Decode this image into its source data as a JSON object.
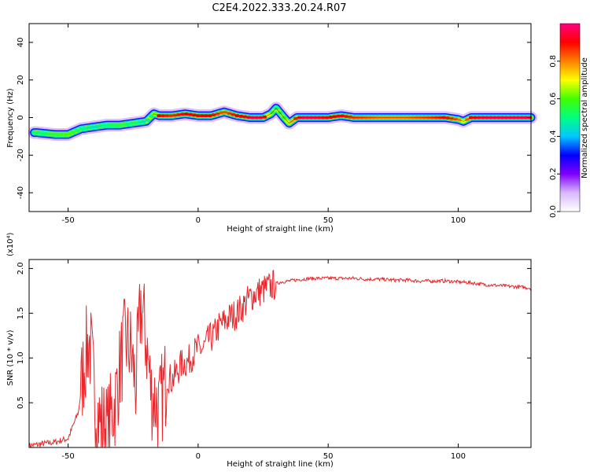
{
  "title": "C2E4.2022.333.20.24.R07",
  "chart_data": [
    {
      "type": "heatmap",
      "xlabel": "Height of straight line (km)",
      "ylabel": "Frequency (Hz)",
      "xlim": [
        -65,
        128
      ],
      "ylim": [
        -50,
        50
      ],
      "x_ticks": [
        -50,
        0,
        50,
        100
      ],
      "y_ticks": [
        -40,
        -20,
        0,
        20,
        40
      ],
      "colorbar": {
        "label": "Normalized spectral amplitude",
        "range": [
          0,
          1
        ],
        "ticks": [
          0.0,
          0.2,
          0.4,
          0.6,
          0.8
        ],
        "colormap": [
          "#ffffff",
          "#d8b8ff",
          "#8000ff",
          "#0000ff",
          "#00c8ff",
          "#00ff80",
          "#40ff00",
          "#ffff00",
          "#ff8000",
          "#ff0000",
          "#ff0080"
        ]
      },
      "ridge": {
        "x": [
          -62,
          -55,
          -50,
          -45,
          -40,
          -35,
          -30,
          -25,
          -20,
          -17,
          -15,
          -10,
          -5,
          0,
          5,
          10,
          15,
          20,
          25,
          28,
          30,
          33,
          35,
          38,
          40,
          45,
          50,
          55,
          60,
          70,
          80,
          90,
          95,
          100,
          102,
          105,
          110,
          115,
          120,
          128
        ],
        "y": [
          -8,
          -9,
          -9,
          -6,
          -5,
          -4,
          -4,
          -3,
          -2,
          2,
          1,
          1,
          2,
          1,
          1,
          3,
          1,
          0,
          0,
          2,
          5,
          0,
          -3,
          0,
          0,
          0,
          0,
          1,
          0,
          0,
          0,
          0,
          0,
          -1,
          -2,
          0,
          0,
          0,
          0,
          0
        ],
        "amplitude": [
          0.5,
          0.55,
          0.6,
          0.5,
          0.45,
          0.5,
          0.55,
          0.5,
          0.45,
          0.55,
          0.9,
          0.85,
          0.9,
          0.9,
          0.9,
          0.8,
          0.9,
          0.95,
          0.95,
          0.6,
          0.5,
          0.6,
          0.7,
          0.9,
          0.95,
          0.95,
          0.9,
          0.9,
          0.85,
          0.8,
          0.8,
          0.85,
          0.9,
          0.8,
          0.7,
          0.9,
          0.95,
          0.95,
          0.95,
          0.95
        ]
      }
    },
    {
      "type": "line",
      "xlabel": "Height of straight line (km)",
      "ylabel": "SNR (10 * v/v)",
      "y_multiplier": "(x10⁴)",
      "xlim": [
        -65,
        128
      ],
      "ylim": [
        0,
        2.1
      ],
      "x_ticks": [
        -50,
        0,
        50,
        100
      ],
      "y_ticks": [
        0.5,
        1.0,
        1.5,
        2.0
      ],
      "series": [
        {
          "color": "#e8262b",
          "x": [
            -65,
            -60,
            -55,
            -50,
            -46,
            -44,
            -42,
            -41,
            -40,
            -38,
            -35,
            -32,
            -30,
            -28,
            -26,
            -24,
            -22,
            -20,
            -18,
            -16,
            -15,
            -14,
            -12,
            -10,
            -8,
            -6,
            -4,
            -2,
            0,
            2,
            4,
            6,
            8,
            10,
            12,
            15,
            18,
            20,
            22,
            25,
            28,
            30,
            32,
            35,
            40,
            45,
            50,
            55,
            60,
            65,
            70,
            75,
            80,
            85,
            90,
            95,
            100,
            105,
            110,
            115,
            120,
            125,
            128
          ],
          "y": [
            0.02,
            0.04,
            0.06,
            0.1,
            0.4,
            0.9,
            1.2,
            1.0,
            0.6,
            0.3,
            0.2,
            0.5,
            0.9,
            1.2,
            1.1,
            0.7,
            1.6,
            1.2,
            0.6,
            0.5,
            0.4,
            0.55,
            0.8,
            0.75,
            0.85,
            0.95,
            0.95,
            1.05,
            1.1,
            1.1,
            1.2,
            1.25,
            1.35,
            1.4,
            1.45,
            1.5,
            1.6,
            1.68,
            1.72,
            1.76,
            1.8,
            1.83,
            1.85,
            1.86,
            1.88,
            1.89,
            1.89,
            1.89,
            1.89,
            1.88,
            1.88,
            1.87,
            1.87,
            1.86,
            1.86,
            1.86,
            1.85,
            1.84,
            1.82,
            1.81,
            1.8,
            1.79,
            1.78
          ]
        }
      ]
    }
  ]
}
